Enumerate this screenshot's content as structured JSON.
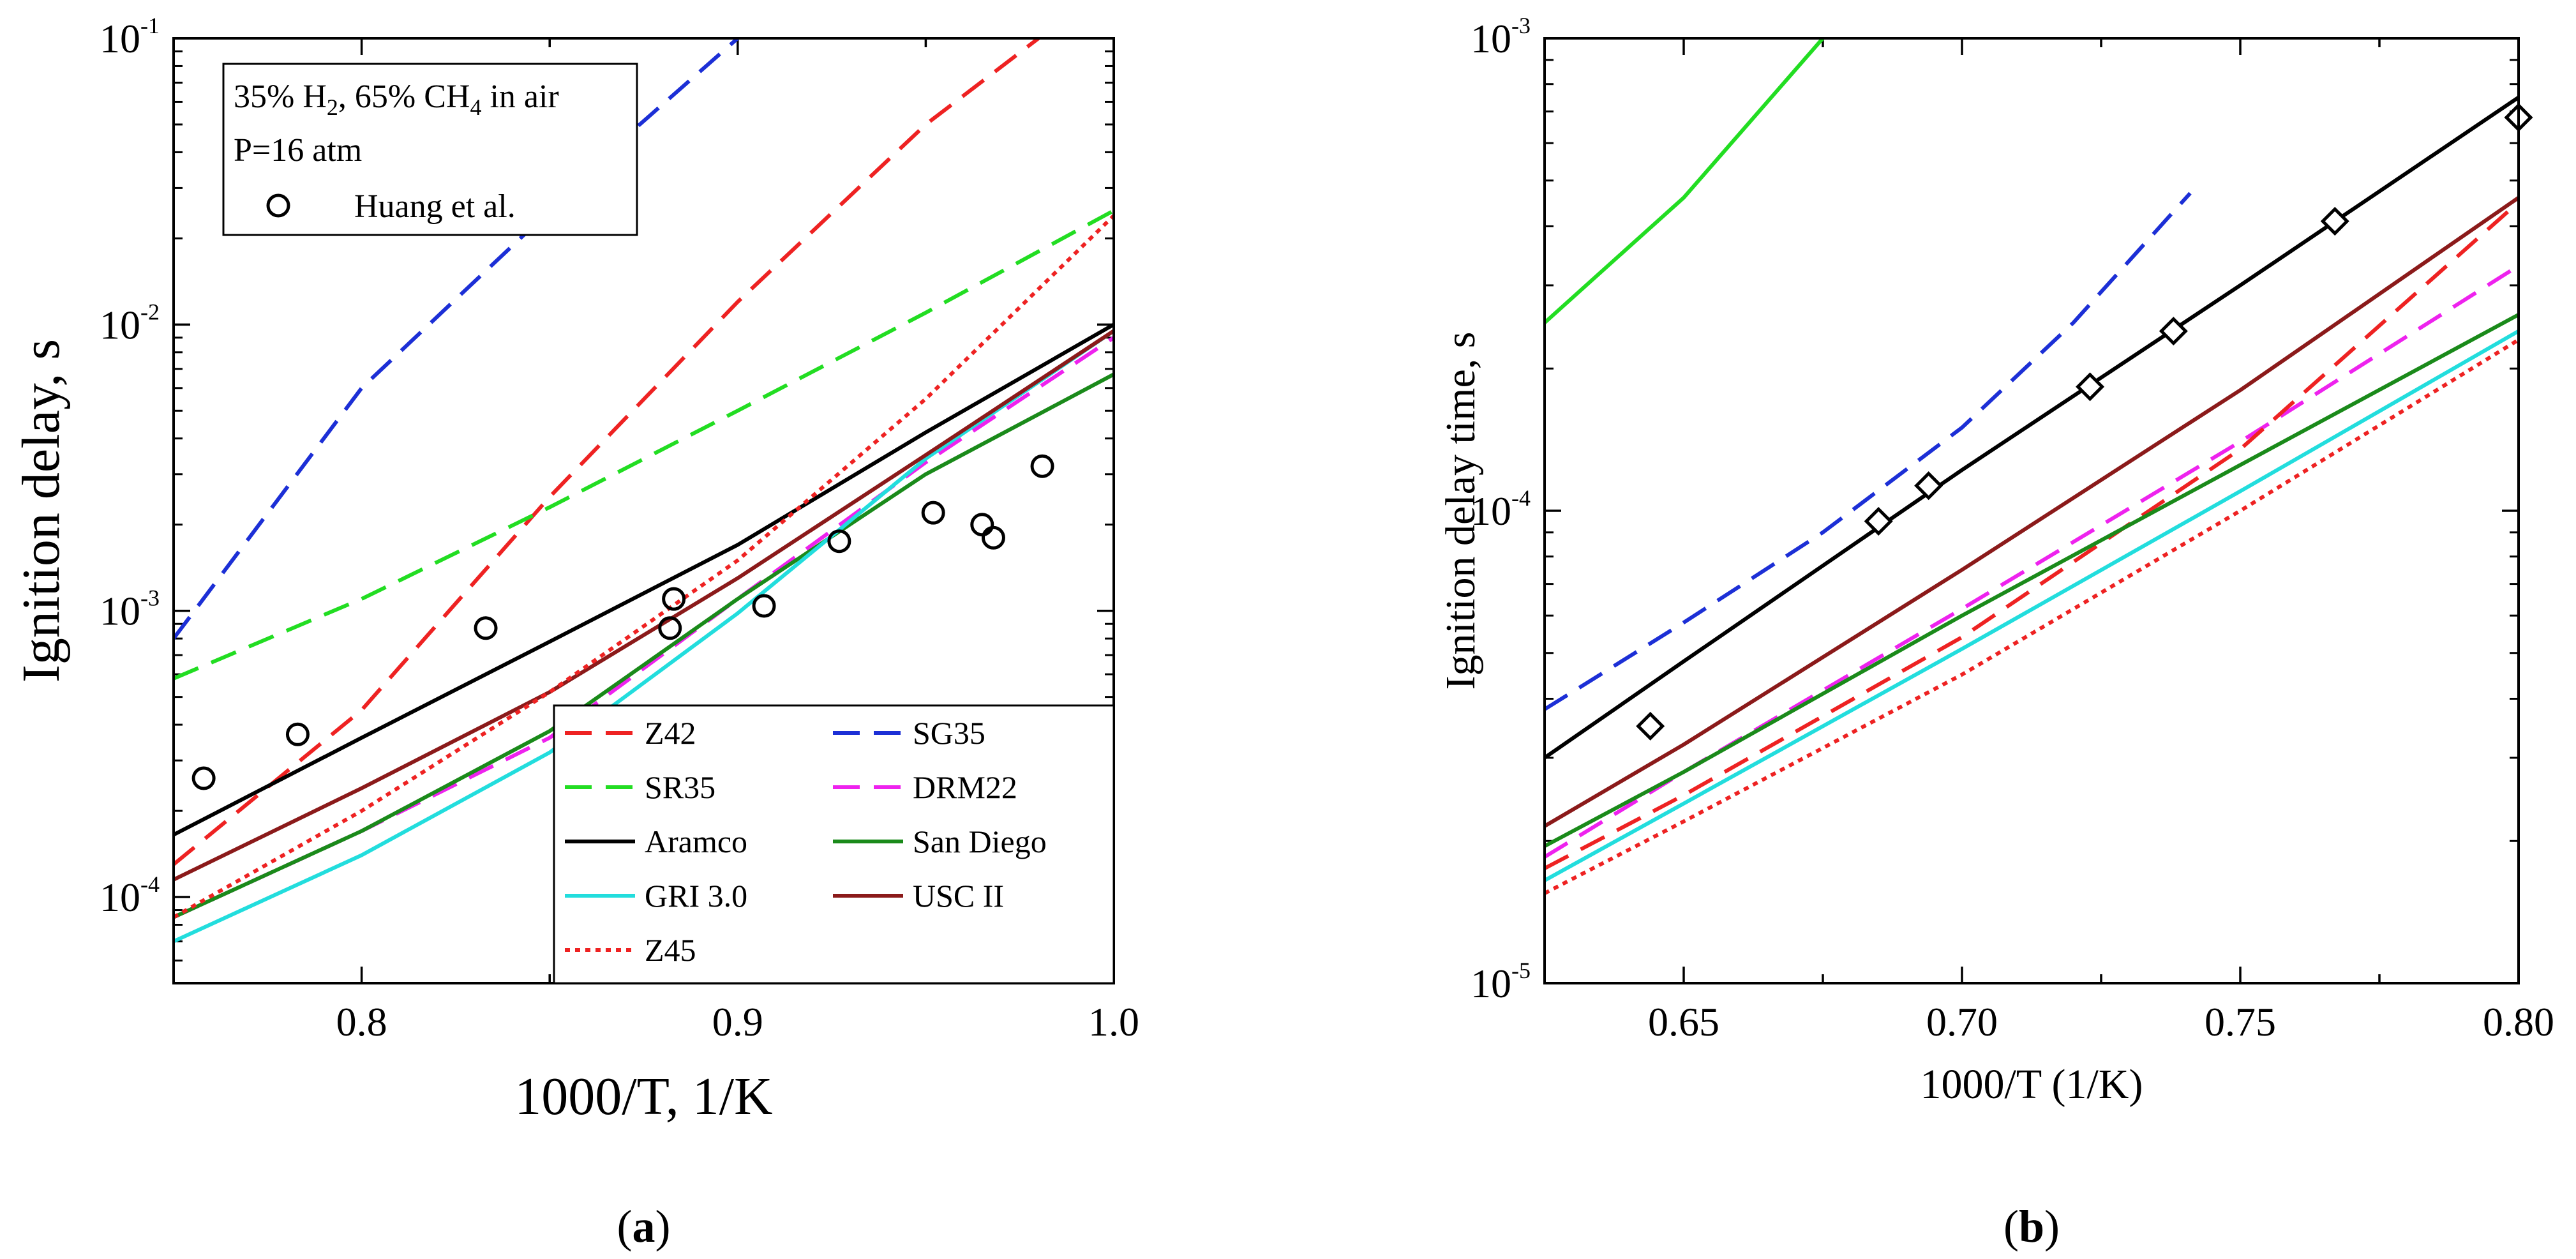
{
  "chart_data": [
    {
      "type": "line",
      "panel_label": "a",
      "xlabel": "1000/T, 1/K",
      "ylabel": "Ignition delay, s",
      "xlim": [
        0.75,
        1.0
      ],
      "ylim": [
        5e-05,
        0.1
      ],
      "yscale": "log",
      "xticks": [
        0.8,
        0.9,
        1.0
      ],
      "xtick_labels": [
        "0.8",
        "0.9",
        "1.0"
      ],
      "yticks": [
        0.0001,
        0.001,
        0.01,
        0.1
      ],
      "ytick_labels": [
        {
          "base": "10",
          "exp": "-4"
        },
        {
          "base": "10",
          "exp": "-3"
        },
        {
          "base": "10",
          "exp": "-2"
        },
        {
          "base": "10",
          "exp": "-1"
        }
      ],
      "annotation": {
        "line1_parts": [
          "35% H",
          "2",
          ", 65% CH",
          "4",
          " in air"
        ],
        "line2": "P=16 atm",
        "marker_label": "Huang et al."
      },
      "legend_position": "bottom-right",
      "series": [
        {
          "name": "Z42",
          "color": "#ee2222",
          "dash": "dashed",
          "x": [
            0.75,
            0.8,
            0.85,
            0.9,
            0.95,
            0.98
          ],
          "y": [
            0.00013,
            0.00045,
            0.0025,
            0.012,
            0.05,
            0.1
          ]
        },
        {
          "name": "SG35",
          "color": "#1c2fd6",
          "dash": "dashed",
          "x": [
            0.75,
            0.8,
            0.85,
            0.87,
            0.9
          ],
          "y": [
            0.0008,
            0.006,
            0.025,
            0.045,
            0.1
          ]
        },
        {
          "name": "SR35",
          "color": "#22dd22",
          "dash": "dashed",
          "x": [
            0.75,
            0.8,
            0.85,
            0.9,
            0.95,
            1.0
          ],
          "y": [
            0.00058,
            0.0011,
            0.0023,
            0.005,
            0.011,
            0.025
          ]
        },
        {
          "name": "DRM22",
          "color": "#ee22ee",
          "dash": "dashed",
          "x": [
            0.75,
            0.8,
            0.85,
            0.9,
            0.95,
            1.0
          ],
          "y": [
            8.5e-05,
            0.00017,
            0.00036,
            0.0011,
            0.0033,
            0.009
          ]
        },
        {
          "name": "Aramco",
          "color": "#000000",
          "dash": "solid",
          "x": [
            0.75,
            0.8,
            0.85,
            0.9,
            0.95,
            1.0
          ],
          "y": [
            0.000165,
            0.00036,
            0.00078,
            0.0017,
            0.0042,
            0.01
          ]
        },
        {
          "name": "San Diego",
          "color": "#1a8a1a",
          "dash": "solid",
          "x": [
            0.75,
            0.8,
            0.85,
            0.9,
            0.95,
            1.0
          ],
          "y": [
            8.5e-05,
            0.00017,
            0.00038,
            0.0011,
            0.003,
            0.0067
          ]
        },
        {
          "name": "GRI 3.0",
          "color": "#22dddd",
          "dash": "solid",
          "x": [
            0.75,
            0.8,
            0.85,
            0.9,
            0.95,
            1.0
          ],
          "y": [
            7e-05,
            0.00014,
            0.00032,
            0.00098,
            0.0034,
            0.0095
          ]
        },
        {
          "name": "USC II",
          "color": "#8b1a1a",
          "dash": "solid",
          "x": [
            0.75,
            0.8,
            0.85,
            0.9,
            0.95,
            1.0
          ],
          "y": [
            0.000115,
            0.00024,
            0.00052,
            0.0013,
            0.0035,
            0.0095
          ]
        },
        {
          "name": "Z45",
          "color": "#ee2222",
          "dash": "dotted",
          "x": [
            0.75,
            0.8,
            0.85,
            0.9,
            0.95,
            1.0
          ],
          "y": [
            8.5e-05,
            0.0002,
            0.00052,
            0.0015,
            0.0055,
            0.024
          ]
        }
      ],
      "experiments": {
        "name": "Huang et al.",
        "marker": "circle",
        "x": [
          0.758,
          0.783,
          0.833,
          0.882,
          0.883,
          0.907,
          0.927,
          0.952,
          0.965,
          0.968,
          0.981
        ],
        "y": [
          0.00026,
          0.00037,
          0.00087,
          0.00087,
          0.0011,
          0.00104,
          0.00175,
          0.0022,
          0.002,
          0.0018,
          0.0032
        ]
      }
    },
    {
      "type": "line",
      "panel_label": "b",
      "xlabel": "1000/T (1/K)",
      "ylabel": "Ignition delay time, s",
      "xlim": [
        0.625,
        0.8
      ],
      "ylim": [
        1e-05,
        0.001
      ],
      "yscale": "log",
      "xticks": [
        0.65,
        0.7,
        0.75,
        0.8
      ],
      "xtick_labels": [
        "0.65",
        "0.70",
        "0.75",
        "0.80"
      ],
      "yticks": [
        1e-05,
        0.0001,
        0.001
      ],
      "ytick_labels": [
        {
          "base": "10",
          "exp": "-5"
        },
        {
          "base": "10",
          "exp": "-4"
        },
        {
          "base": "10",
          "exp": "-3"
        }
      ],
      "series": [
        {
          "name": "SR35",
          "color": "#22dd22",
          "dash": "solid",
          "x": [
            0.625,
            0.65,
            0.675
          ],
          "y": [
            0.00025,
            0.00046,
            0.001
          ]
        },
        {
          "name": "SG35",
          "color": "#1c2fd6",
          "dash": "dashed",
          "x": [
            0.625,
            0.65,
            0.675,
            0.7,
            0.72,
            0.741
          ],
          "y": [
            3.8e-05,
            5.8e-05,
            9e-05,
            0.00015,
            0.00025,
            0.00047
          ]
        },
        {
          "name": "Aramco",
          "color": "#000000",
          "dash": "solid",
          "x": [
            0.625,
            0.65,
            0.7,
            0.75,
            0.8
          ],
          "y": [
            3e-05,
            4.8e-05,
            0.000122,
            0.0003,
            0.00075
          ]
        },
        {
          "name": "USC II",
          "color": "#8b1a1a",
          "dash": "solid",
          "x": [
            0.625,
            0.65,
            0.7,
            0.75,
            0.8
          ],
          "y": [
            2.15e-05,
            3.2e-05,
            7.5e-05,
            0.00018,
            0.00046
          ]
        },
        {
          "name": "DRM22",
          "color": "#ee22ee",
          "dash": "dashed",
          "x": [
            0.625,
            0.65,
            0.7,
            0.75,
            0.8
          ],
          "y": [
            1.85e-05,
            2.8e-05,
            6.2e-05,
            0.00014,
            0.00033
          ]
        },
        {
          "name": "Z42",
          "color": "#ee2222",
          "dash": "dashed",
          "x": [
            0.625,
            0.65,
            0.7,
            0.75,
            0.8
          ],
          "y": [
            1.75e-05,
            2.5e-05,
            5.4e-05,
            0.000135,
            0.00045
          ]
        },
        {
          "name": "San Diego",
          "color": "#1a8a1a",
          "dash": "solid",
          "x": [
            0.625,
            0.65,
            0.7,
            0.75,
            0.8
          ],
          "y": [
            1.95e-05,
            2.8e-05,
            6e-05,
            0.000125,
            0.00026
          ]
        },
        {
          "name": "GRI 3.0",
          "color": "#22dddd",
          "dash": "solid",
          "x": [
            0.625,
            0.65,
            0.7,
            0.75,
            0.8
          ],
          "y": [
            1.65e-05,
            2.4e-05,
            5.1e-05,
            0.00011,
            0.00024
          ]
        },
        {
          "name": "Z45",
          "color": "#ee2222",
          "dash": "dotted",
          "x": [
            0.625,
            0.65,
            0.7,
            0.75,
            0.8
          ],
          "y": [
            1.55e-05,
            2.2e-05,
            4.5e-05,
            0.0001,
            0.00023
          ]
        }
      ],
      "experiments": {
        "marker": "diamond",
        "x": [
          0.644,
          0.685,
          0.694,
          0.723,
          0.738,
          0.767,
          0.8
        ],
        "y": [
          3.5e-05,
          9.5e-05,
          0.000113,
          0.000183,
          0.00024,
          0.00041,
          0.00068
        ]
      }
    }
  ]
}
